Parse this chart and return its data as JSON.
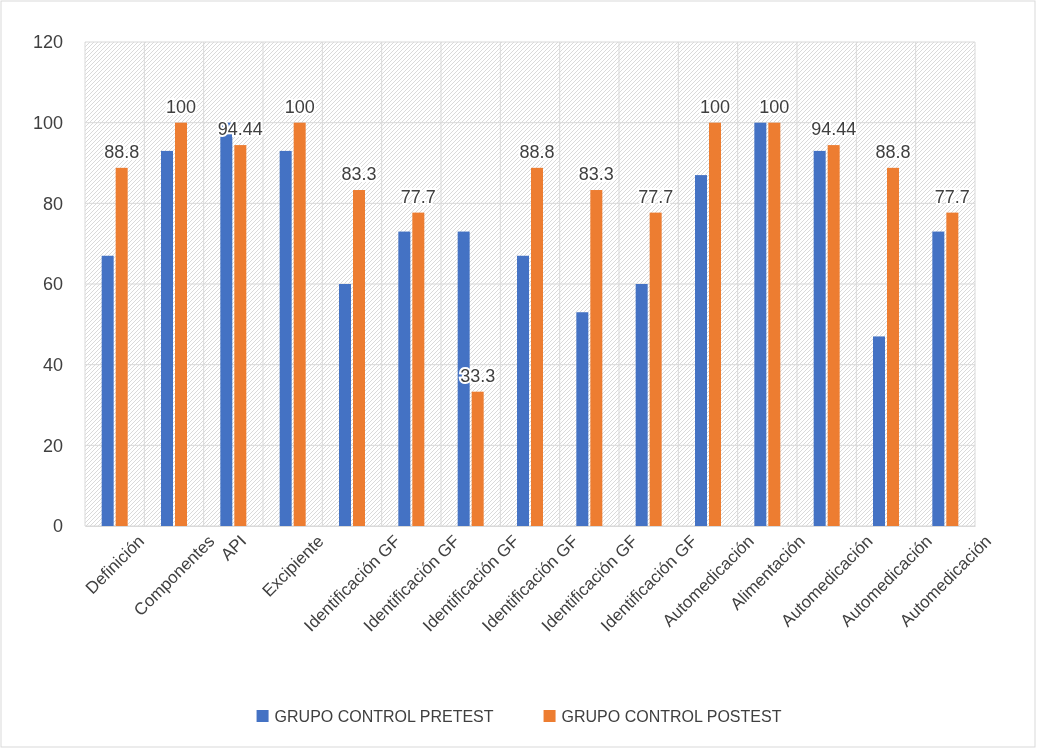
{
  "chart_data": {
    "type": "bar",
    "categories": [
      "Definición",
      "Componentes",
      "API",
      "Excipiente",
      "Identificación GF",
      "Identificación GF",
      "Identificación GF",
      "Identificación GF",
      "Identificación GF",
      "Identificación GF",
      "Automedicación",
      "Alimentación",
      "Automedicación",
      "Automedicación",
      "Automedicación"
    ],
    "series": [
      {
        "name": "GRUPO CONTROL PRETEST",
        "color": "#4472c4",
        "values": [
          67,
          93,
          100,
          93,
          60,
          73,
          73,
          67,
          53,
          60,
          87,
          100,
          93,
          47,
          73
        ]
      },
      {
        "name": "GRUPO CONTROL POSTEST",
        "color": "#ed7d31",
        "values": [
          88.8,
          100,
          94.44,
          100,
          83.3,
          77.7,
          33.3,
          88.8,
          83.3,
          77.7,
          100,
          100,
          94.44,
          88.8,
          77.7
        ],
        "value_labels": [
          "88.8",
          "100",
          "94.44",
          "100",
          "83.3",
          "77.7",
          "33.3",
          "88.8",
          "83.3",
          "77.7",
          "100",
          "100",
          "94.44",
          "88.8",
          "77.7"
        ]
      }
    ],
    "ylim": [
      0,
      120
    ],
    "yticks": [
      0,
      20,
      40,
      60,
      80,
      100,
      120
    ],
    "grid": true,
    "legend": "bottom"
  }
}
